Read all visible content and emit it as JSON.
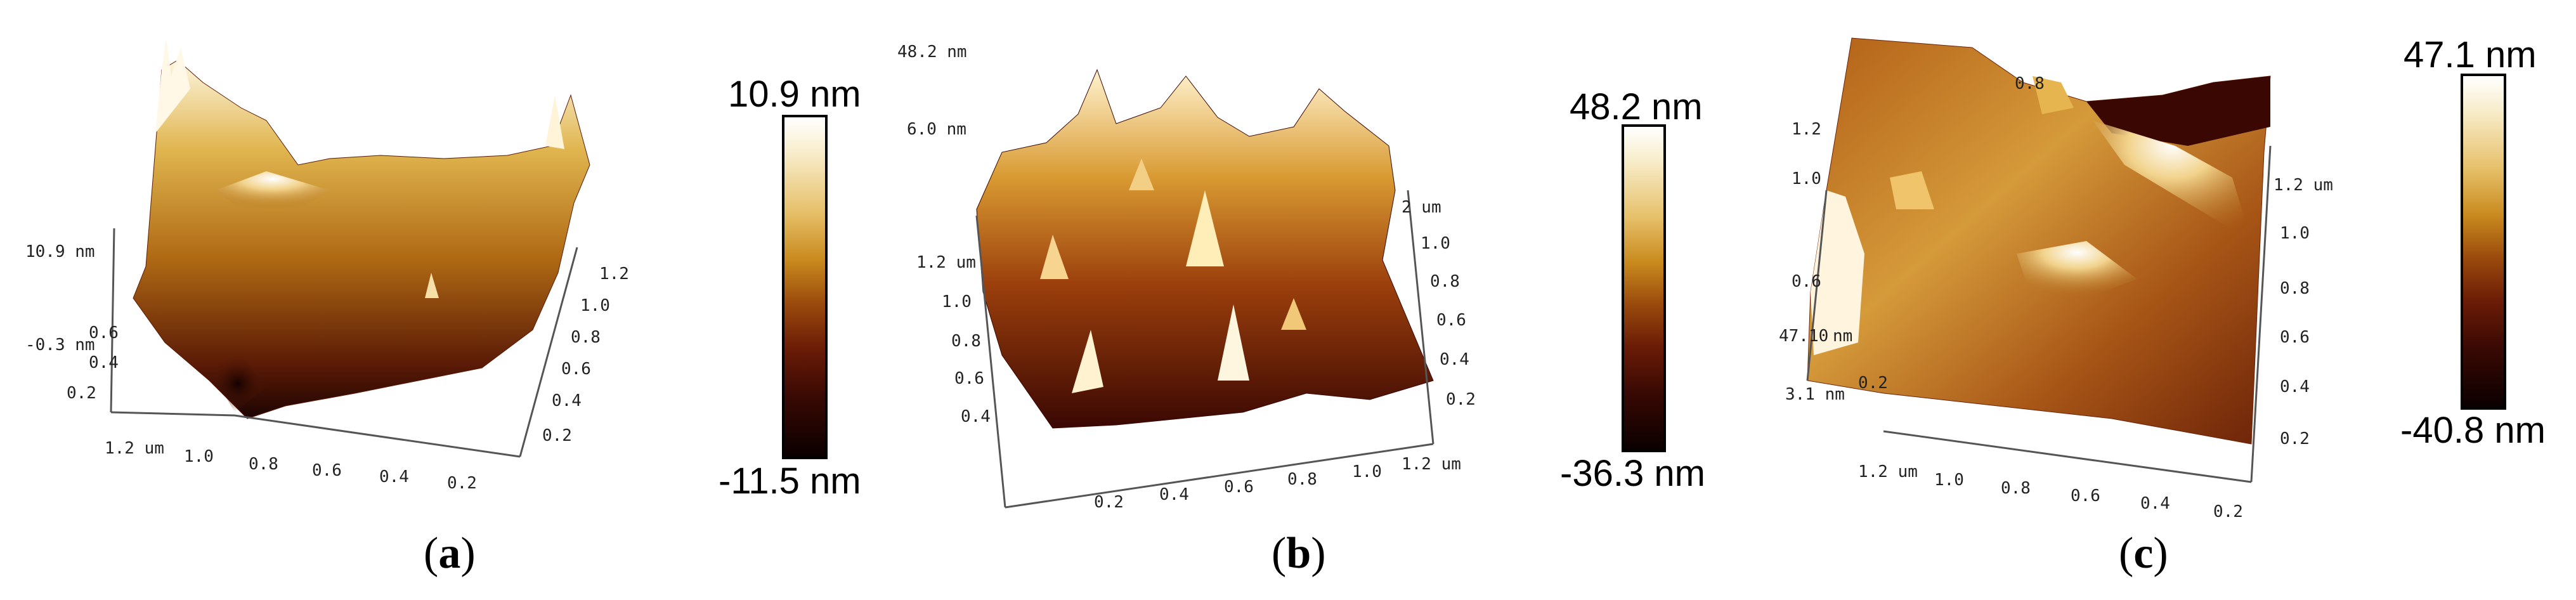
{
  "figure": {
    "panels": [
      {
        "id": "a",
        "caption_letter": "a",
        "colorbar": {
          "max_label": "10.9 nm",
          "min_label": "-11.5 nm"
        },
        "axis_text": {
          "z_labels": [
            "10.9 nm",
            "-0.3 nm"
          ],
          "left_ticks": [
            "0.6",
            "0.4",
            "0.2"
          ],
          "bottom_ticks": [
            "1.2 um",
            "1.0",
            "0.8",
            "0.6",
            "0.4",
            "0.2"
          ],
          "right_ticks": [
            "1.2 um",
            "1.0",
            "0.8",
            "0.6",
            "0.4",
            "0.2"
          ]
        }
      },
      {
        "id": "b",
        "caption_letter": "b",
        "colorbar": {
          "max_label": "48.2 nm",
          "min_label": "-36.3 nm"
        },
        "axis_text": {
          "z_labels": [
            "48.2 nm",
            "6.0 nm"
          ],
          "left_ticks": [
            "1.2 um",
            "1.0",
            "0.8",
            "0.6",
            "0.4"
          ],
          "bottom_ticks": [
            "0.2",
            "0.4",
            "0.6",
            "0.8",
            "1.0",
            "1.2 um"
          ],
          "right_ticks": [
            "2 um",
            "1.0",
            "0.8",
            "0.6",
            "0.4",
            "0.2"
          ]
        }
      },
      {
        "id": "c",
        "caption_letter": "c",
        "colorbar": {
          "max_label": "47.1 nm",
          "min_label": "-40.8 nm"
        },
        "axis_text": {
          "z_labels": [
            "47.10",
            "nm",
            "3.1 nm"
          ],
          "left_ticks": [
            "1.2",
            "1.0",
            "0.6",
            "0.2"
          ],
          "top_ticks": [
            "0.8"
          ],
          "bottom_ticks": [
            "1.2 um",
            "1.0",
            "0.8",
            "0.6",
            "0.4",
            "0.2"
          ],
          "right_ticks": [
            "1.2 um",
            "1.0",
            "0.8",
            "0.6",
            "0.4",
            "0.2"
          ]
        }
      }
    ]
  }
}
